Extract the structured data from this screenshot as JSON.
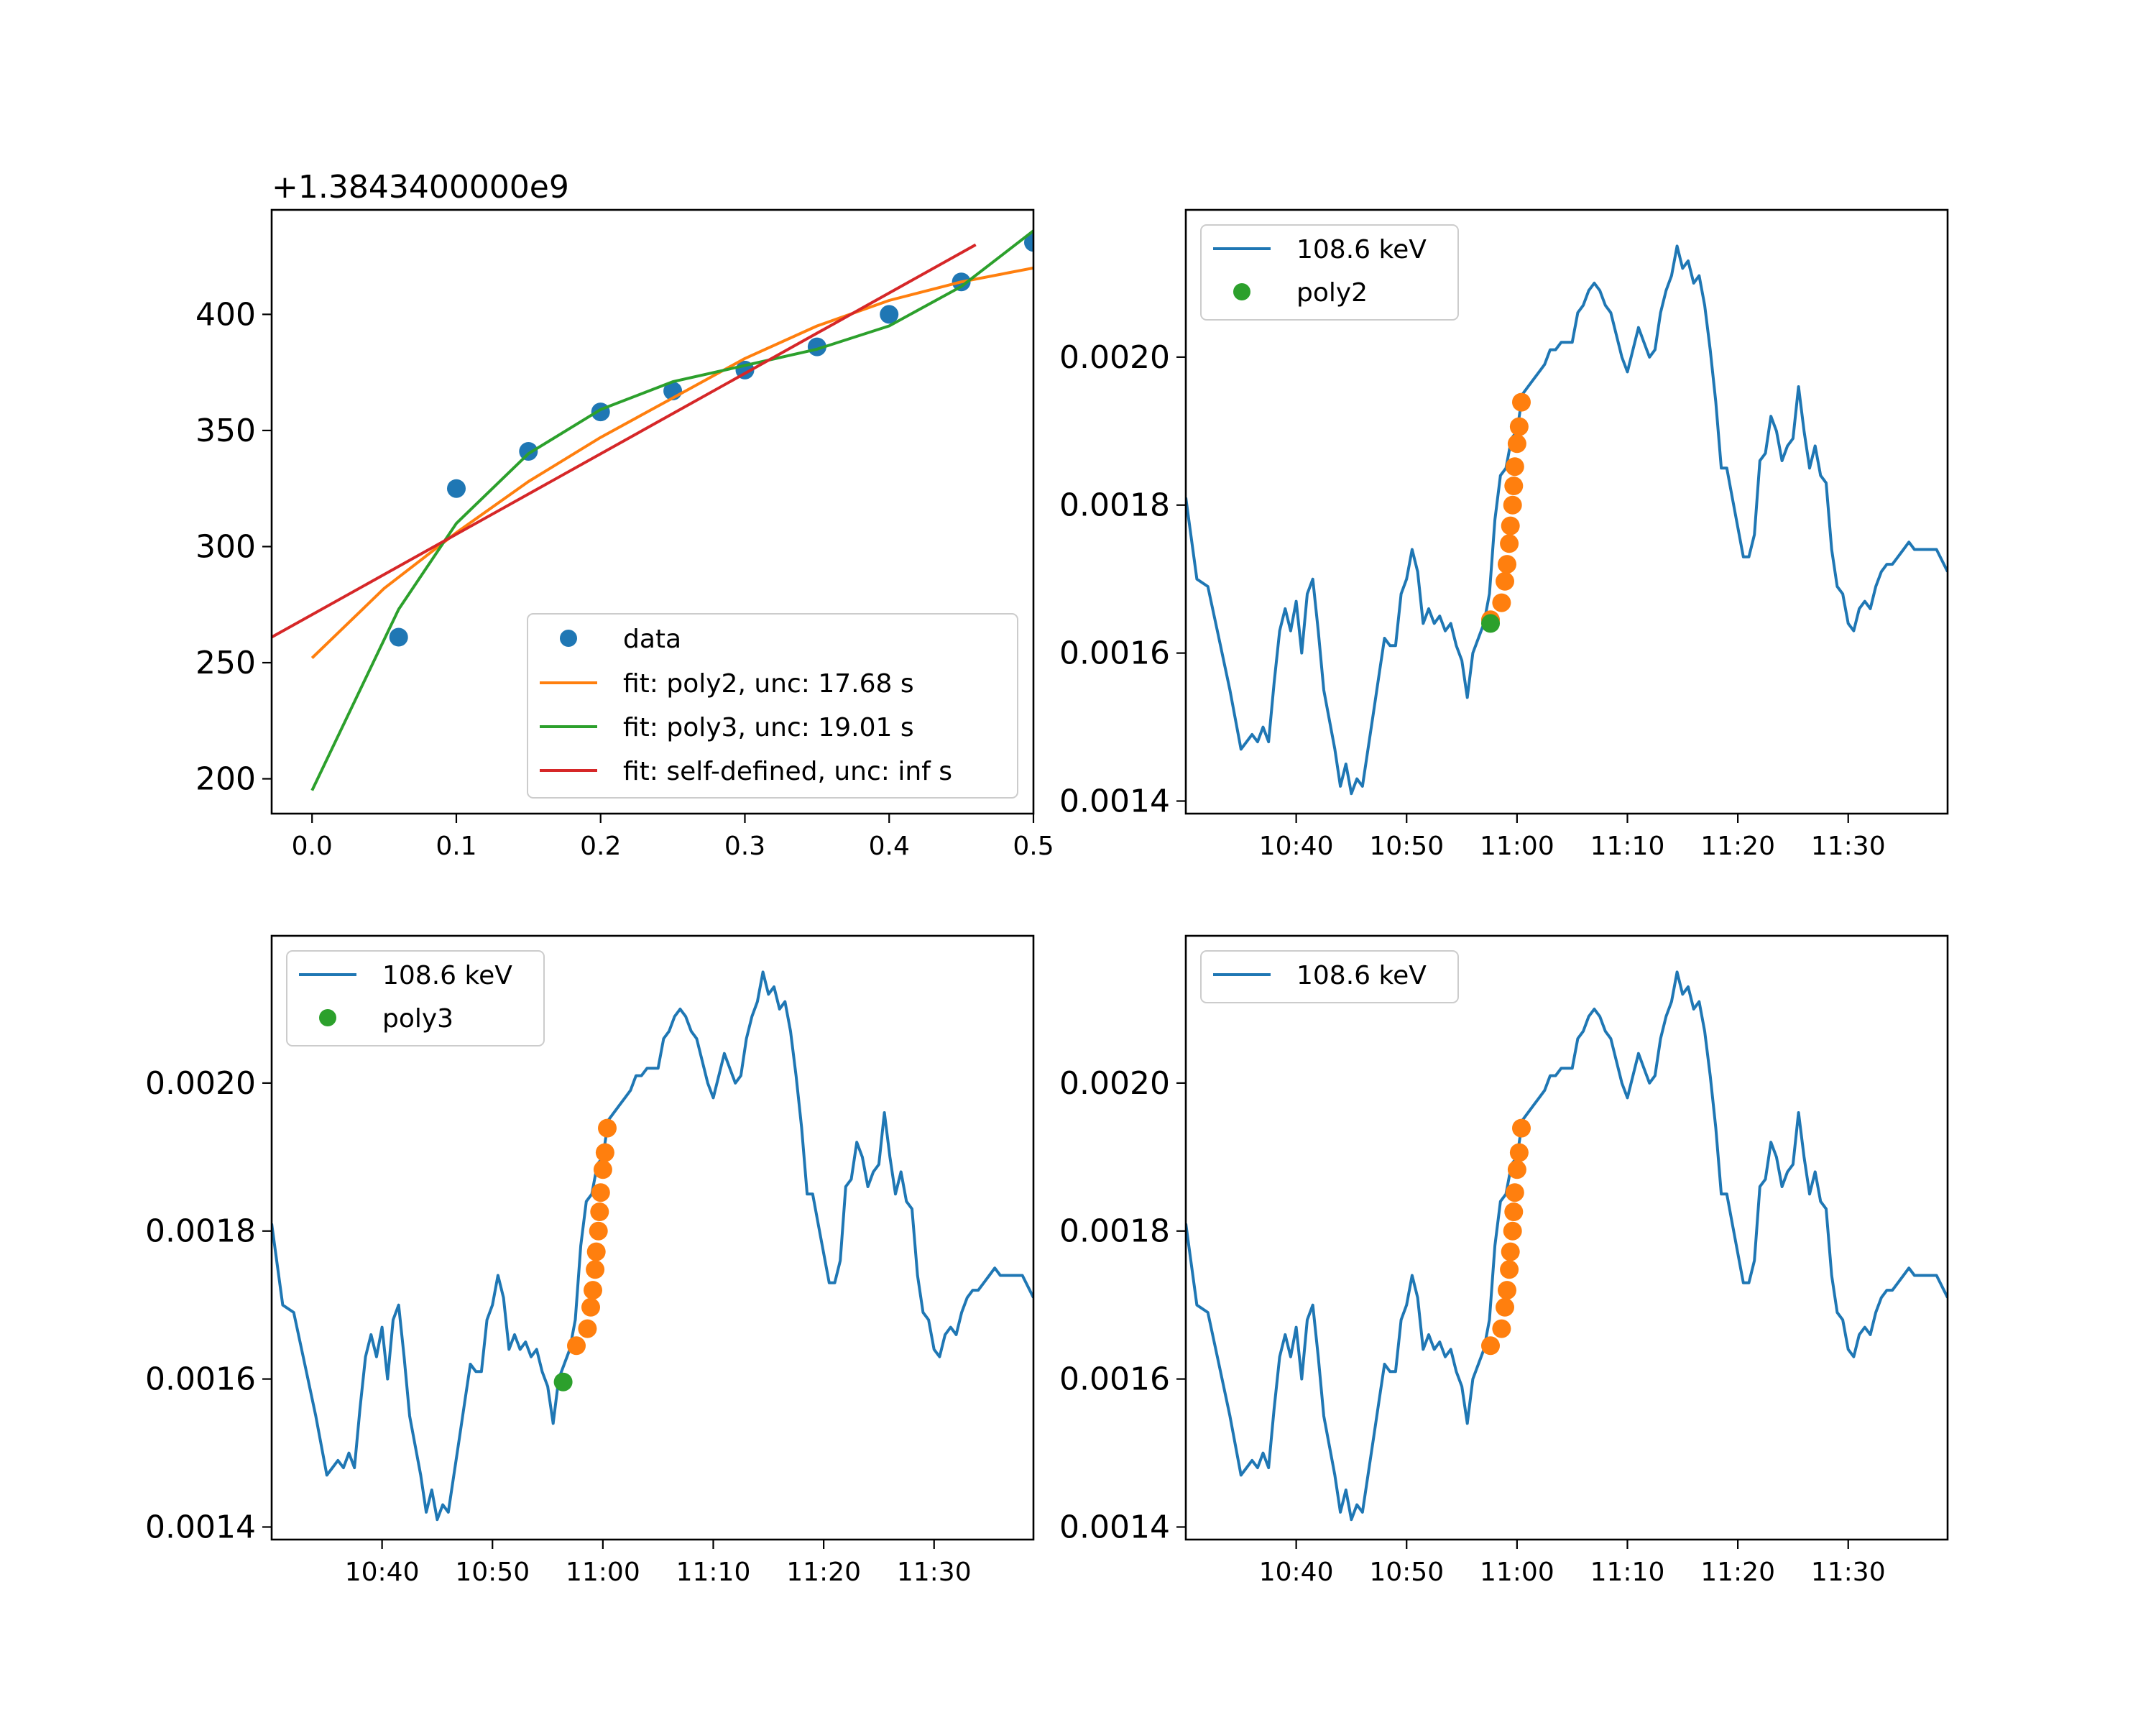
{
  "chart_data": [
    {
      "type": "scatter",
      "x_range": [
        -0.028,
        0.5
      ],
      "y_range": [
        185,
        445
      ],
      "y_offset_label": "+1.3843400000e9",
      "x_ticks": [
        0.0,
        0.1,
        0.2,
        0.3,
        0.4,
        0.5
      ],
      "x_tick_labels": [
        "0.0",
        "0.1",
        "0.2",
        "0.3",
        "0.4",
        "0.5"
      ],
      "y_ticks": [
        200,
        250,
        300,
        350,
        400
      ],
      "y_tick_labels": [
        "200",
        "250",
        "300",
        "350",
        "400"
      ],
      "legend_position": "lower right",
      "series": [
        {
          "name": "data",
          "kind": "points",
          "color": "#1f77b4",
          "x": [
            0.06,
            0.1,
            0.15,
            0.2,
            0.25,
            0.3,
            0.35,
            0.4,
            0.45,
            0.5
          ],
          "y": [
            261,
            325,
            341,
            358,
            367,
            376,
            386,
            400,
            414,
            431
          ]
        },
        {
          "name": "fit: poly2, unc: 17.68 s",
          "kind": "line",
          "color": "#ff7f0e",
          "x": [
            0.0,
            0.05,
            0.1,
            0.15,
            0.2,
            0.25,
            0.3,
            0.35,
            0.4,
            0.45,
            0.5
          ],
          "y": [
            252,
            282,
            306,
            328,
            347,
            364,
            381,
            395,
            406,
            414,
            420
          ]
        },
        {
          "name": "fit: poly3, unc: 19.01 s",
          "kind": "line",
          "color": "#2ca02c",
          "x": [
            0.0,
            0.06,
            0.1,
            0.15,
            0.2,
            0.25,
            0.3,
            0.35,
            0.4,
            0.45,
            0.5
          ],
          "y": [
            195,
            273,
            310,
            340,
            359,
            371,
            378,
            385,
            395,
            412,
            436
          ]
        },
        {
          "name": "fit: self-defined, unc: inf s",
          "kind": "line",
          "color": "#d62728",
          "x": [
            -0.028,
            0.46
          ],
          "y": [
            261,
            430
          ]
        }
      ]
    },
    {
      "type": "line",
      "x_range": [
        30,
        99
      ],
      "y_range": [
        0.001383,
        0.002199
      ],
      "x_ticks": [
        40,
        50,
        60,
        70,
        80,
        90
      ],
      "x_tick_labels": [
        "10:40",
        "10:50",
        "11:00",
        "11:10",
        "11:20",
        "11:30"
      ],
      "y_ticks": [
        0.0014,
        0.0016,
        0.0018,
        0.002
      ],
      "y_tick_labels": [
        "0.0014",
        "0.0016",
        "0.0018",
        "0.0020"
      ],
      "legend_position": "upper left",
      "series": [
        {
          "name": "108.6 keV",
          "kind": "line",
          "color": "#1f77b4",
          "ref": "spectrum"
        },
        {
          "name": "",
          "kind": "points",
          "color": "#ff7f0e",
          "ref": "segment"
        },
        {
          "name": "poly2",
          "kind": "points",
          "color": "#2ca02c",
          "x": [
            57.6
          ],
          "y": [
            0.00164
          ]
        }
      ]
    },
    {
      "type": "line",
      "x_range": [
        30,
        99
      ],
      "y_range": [
        0.001383,
        0.002199
      ],
      "x_ticks": [
        40,
        50,
        60,
        70,
        80,
        90
      ],
      "x_tick_labels": [
        "10:40",
        "10:50",
        "11:00",
        "11:10",
        "11:20",
        "11:30"
      ],
      "y_ticks": [
        0.0014,
        0.0016,
        0.0018,
        0.002
      ],
      "y_tick_labels": [
        "0.0014",
        "0.0016",
        "0.0018",
        "0.0020"
      ],
      "legend_position": "upper left",
      "series": [
        {
          "name": "108.6 keV",
          "kind": "line",
          "color": "#1f77b4",
          "ref": "spectrum"
        },
        {
          "name": "",
          "kind": "points",
          "color": "#ff7f0e",
          "ref": "segment"
        },
        {
          "name": "poly3",
          "kind": "points",
          "color": "#2ca02c",
          "x": [
            56.4
          ],
          "y": [
            0.001596
          ]
        }
      ]
    },
    {
      "type": "line",
      "x_range": [
        30,
        99
      ],
      "y_range": [
        0.001383,
        0.002199
      ],
      "x_ticks": [
        40,
        50,
        60,
        70,
        80,
        90
      ],
      "x_tick_labels": [
        "10:40",
        "10:50",
        "11:00",
        "11:10",
        "11:20",
        "11:30"
      ],
      "y_ticks": [
        0.0014,
        0.0016,
        0.0018,
        0.002
      ],
      "y_tick_labels": [
        "0.0014",
        "0.0016",
        "0.0018",
        "0.0020"
      ],
      "legend_position": "upper left",
      "series": [
        {
          "name": "108.6 keV",
          "kind": "line",
          "color": "#1f77b4",
          "ref": "spectrum"
        },
        {
          "name": "",
          "kind": "points",
          "color": "#ff7f0e",
          "ref": "segment"
        }
      ]
    }
  ],
  "shared_series": {
    "spectrum": {
      "x": [
        30.0,
        31.0,
        32.0,
        33.0,
        34.0,
        35.0,
        36.0,
        36.5,
        37.0,
        37.5,
        38.0,
        38.5,
        39.0,
        39.5,
        40.0,
        40.5,
        41.0,
        41.5,
        42.0,
        42.5,
        43.0,
        43.5,
        44.0,
        44.5,
        45.0,
        45.5,
        46.0,
        46.5,
        47.0,
        47.5,
        48.0,
        48.5,
        49.0,
        49.5,
        50.0,
        50.5,
        51.0,
        51.5,
        52.0,
        52.5,
        53.0,
        53.5,
        54.0,
        54.5,
        55.0,
        55.5,
        56.0,
        56.5,
        57.0,
        57.5,
        58.0,
        58.5,
        59.0,
        59.5,
        60.0,
        60.5,
        61.0,
        61.5,
        62.0,
        62.5,
        63.0,
        63.5,
        64.0,
        64.5,
        65.0,
        65.5,
        66.0,
        66.5,
        67.0,
        67.5,
        68.0,
        68.5,
        69.0,
        69.5,
        70.0,
        70.5,
        71.0,
        71.5,
        72.0,
        72.5,
        73.0,
        73.5,
        74.0,
        74.5,
        75.0,
        75.5,
        76.0,
        76.5,
        77.0,
        77.5,
        78.0,
        78.5,
        79.0,
        79.5,
        80.0,
        80.5,
        81.0,
        81.5,
        82.0,
        82.5,
        83.0,
        83.5,
        84.0,
        84.5,
        85.0,
        85.5,
        86.0,
        86.5,
        87.0,
        87.5,
        88.0,
        88.5,
        89.0,
        89.5,
        90.0,
        90.5,
        91.0,
        91.5,
        92.0,
        92.5,
        93.0,
        93.5,
        94.0,
        94.5,
        95.0,
        95.5,
        96.0,
        97.0,
        98.0,
        99.0
      ],
      "y": [
        0.00181,
        0.0017,
        0.00169,
        0.00162,
        0.00155,
        0.00147,
        0.00149,
        0.00148,
        0.0015,
        0.00148,
        0.00156,
        0.00163,
        0.00166,
        0.00163,
        0.00167,
        0.0016,
        0.00168,
        0.0017,
        0.00163,
        0.00155,
        0.00151,
        0.00147,
        0.00142,
        0.00145,
        0.00141,
        0.00143,
        0.00142,
        0.00147,
        0.00152,
        0.00157,
        0.00162,
        0.00161,
        0.00161,
        0.00168,
        0.0017,
        0.00174,
        0.00171,
        0.00164,
        0.00166,
        0.00164,
        0.00165,
        0.00163,
        0.00164,
        0.00161,
        0.00159,
        0.00154,
        0.0016,
        0.00162,
        0.00164,
        0.00168,
        0.00178,
        0.00184,
        0.00185,
        0.00189,
        0.0019,
        0.00195,
        0.00196,
        0.00197,
        0.00198,
        0.00199,
        0.00201,
        0.00201,
        0.00202,
        0.00202,
        0.00202,
        0.00206,
        0.00207,
        0.00209,
        0.0021,
        0.00209,
        0.00207,
        0.00206,
        0.00203,
        0.002,
        0.00198,
        0.00201,
        0.00204,
        0.00202,
        0.002,
        0.00201,
        0.00206,
        0.00209,
        0.00211,
        0.00215,
        0.00212,
        0.00213,
        0.0021,
        0.00211,
        0.00207,
        0.00201,
        0.00194,
        0.00185,
        0.00185,
        0.00181,
        0.00177,
        0.00173,
        0.00173,
        0.00176,
        0.00186,
        0.00187,
        0.00192,
        0.0019,
        0.00186,
        0.00188,
        0.00189,
        0.00196,
        0.0019,
        0.00185,
        0.00188,
        0.00184,
        0.00183,
        0.00174,
        0.00169,
        0.00168,
        0.00164,
        0.00163,
        0.00166,
        0.00167,
        0.00166,
        0.00169,
        0.00171,
        0.00172,
        0.00172,
        0.00173,
        0.00174,
        0.00175,
        0.00174,
        0.00174,
        0.00174,
        0.00171
      ]
    },
    "segment": {
      "x": [
        57.6,
        58.6,
        58.9,
        59.1,
        59.3,
        59.4,
        59.6,
        59.7,
        59.8,
        60.0,
        60.2,
        60.4
      ],
      "y": [
        0.001645,
        0.001668,
        0.001697,
        0.00172,
        0.001748,
        0.001772,
        0.0018,
        0.001826,
        0.001852,
        0.001883,
        0.001906,
        0.001939
      ]
    }
  },
  "colors": {
    "blue": "#1f77b4",
    "orange": "#ff7f0e",
    "green": "#2ca02c",
    "red": "#d62728"
  }
}
